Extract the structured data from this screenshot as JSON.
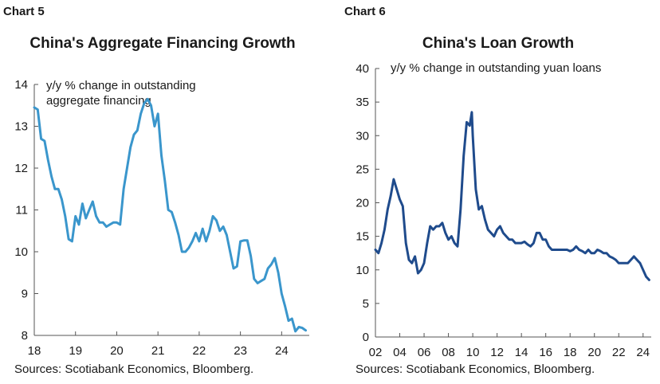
{
  "chart_data": [
    {
      "type": "line",
      "label": "Chart 5",
      "title": "China's Aggregate Financing Growth",
      "annotation": [
        "y/y % change in outstanding",
        "aggregate financing"
      ],
      "source": "Sources: Scotiabank Economics, Bloomberg.",
      "ylim": [
        8,
        14
      ],
      "yticks": [
        8,
        9,
        10,
        11,
        12,
        13,
        14
      ],
      "xlim": [
        2018,
        2024.67
      ],
      "xticks": [
        2018,
        2019,
        2020,
        2021,
        2022,
        2023,
        2024
      ],
      "xtick_labels": [
        "18",
        "19",
        "20",
        "21",
        "22",
        "23",
        "24"
      ],
      "grid": false,
      "series": [
        {
          "color": "#3a96cc",
          "x": [
            2018.0,
            2018.083,
            2018.167,
            2018.25,
            2018.333,
            2018.417,
            2018.5,
            2018.583,
            2018.667,
            2018.75,
            2018.833,
            2018.917,
            2019.0,
            2019.083,
            2019.167,
            2019.25,
            2019.333,
            2019.417,
            2019.5,
            2019.583,
            2019.667,
            2019.75,
            2019.833,
            2019.917,
            2020.0,
            2020.083,
            2020.167,
            2020.25,
            2020.333,
            2020.417,
            2020.5,
            2020.583,
            2020.667,
            2020.75,
            2020.833,
            2020.917,
            2021.0,
            2021.083,
            2021.167,
            2021.25,
            2021.333,
            2021.417,
            2021.5,
            2021.583,
            2021.667,
            2021.75,
            2021.833,
            2021.917,
            2022.0,
            2022.083,
            2022.167,
            2022.25,
            2022.333,
            2022.417,
            2022.5,
            2022.583,
            2022.667,
            2022.75,
            2022.833,
            2022.917,
            2023.0,
            2023.083,
            2023.167,
            2023.25,
            2023.333,
            2023.417,
            2023.5,
            2023.583,
            2023.667,
            2023.75,
            2023.833,
            2023.917,
            2024.0,
            2024.083,
            2024.167,
            2024.25,
            2024.333,
            2024.417,
            2024.5,
            2024.583
          ],
          "y": [
            13.45,
            13.4,
            12.7,
            12.65,
            12.2,
            11.8,
            11.5,
            11.5,
            11.25,
            10.85,
            10.3,
            10.25,
            10.85,
            10.65,
            11.15,
            10.8,
            11.0,
            11.2,
            10.85,
            10.7,
            10.7,
            10.6,
            10.65,
            10.7,
            10.7,
            10.65,
            11.5,
            12.0,
            12.5,
            12.8,
            12.9,
            13.3,
            13.55,
            13.65,
            13.5,
            13.0,
            13.3,
            12.3,
            11.7,
            11.0,
            10.95,
            10.7,
            10.4,
            10.0,
            10.0,
            10.1,
            10.25,
            10.45,
            10.25,
            10.55,
            10.25,
            10.5,
            10.85,
            10.75,
            10.5,
            10.6,
            10.4,
            10.0,
            9.6,
            9.65,
            10.25,
            10.27,
            10.27,
            9.9,
            9.35,
            9.25,
            9.3,
            9.35,
            9.6,
            9.7,
            9.85,
            9.5,
            9.0,
            8.7,
            8.35,
            8.4,
            8.1,
            8.2,
            8.18,
            8.12
          ]
        }
      ]
    },
    {
      "type": "line",
      "label": "Chart 6",
      "title": "China's  Loan Growth",
      "annotation": [
        "y/y % change in outstanding yuan loans"
      ],
      "source": "Sources: Scotiabank Economics, Bloomberg.",
      "ylim": [
        0,
        40
      ],
      "yticks": [
        0,
        5,
        10,
        15,
        20,
        25,
        30,
        35,
        40
      ],
      "xlim": [
        2002,
        2024.67
      ],
      "xticks": [
        2002,
        2004,
        2006,
        2008,
        2010,
        2012,
        2014,
        2016,
        2018,
        2020,
        2022,
        2024
      ],
      "xtick_labels": [
        "02",
        "04",
        "06",
        "08",
        "10",
        "12",
        "14",
        "16",
        "18",
        "20",
        "22",
        "24"
      ],
      "grid": false,
      "series": [
        {
          "color": "#1f4b8c",
          "x": [
            2002.0,
            2002.25,
            2002.5,
            2002.75,
            2003.0,
            2003.25,
            2003.5,
            2003.75,
            2004.0,
            2004.25,
            2004.5,
            2004.75,
            2005.0,
            2005.25,
            2005.5,
            2005.75,
            2006.0,
            2006.25,
            2006.5,
            2006.75,
            2007.0,
            2007.25,
            2007.5,
            2007.75,
            2008.0,
            2008.25,
            2008.5,
            2008.75,
            2009.0,
            2009.25,
            2009.5,
            2009.75,
            2009.92,
            2010.0,
            2010.25,
            2010.5,
            2010.75,
            2011.0,
            2011.25,
            2011.5,
            2011.75,
            2012.0,
            2012.25,
            2012.5,
            2012.75,
            2013.0,
            2013.25,
            2013.5,
            2013.75,
            2014.0,
            2014.25,
            2014.5,
            2014.75,
            2015.0,
            2015.25,
            2015.5,
            2015.75,
            2016.0,
            2016.25,
            2016.5,
            2016.75,
            2017.0,
            2017.25,
            2017.5,
            2017.75,
            2018.0,
            2018.25,
            2018.5,
            2018.75,
            2019.0,
            2019.25,
            2019.5,
            2019.75,
            2020.0,
            2020.25,
            2020.5,
            2020.75,
            2021.0,
            2021.25,
            2021.5,
            2021.75,
            2022.0,
            2022.25,
            2022.5,
            2022.75,
            2023.0,
            2023.25,
            2023.5,
            2023.75,
            2024.0,
            2024.25,
            2024.5
          ],
          "y": [
            13.0,
            12.5,
            14.0,
            16.0,
            19.0,
            21.0,
            23.5,
            22.0,
            20.5,
            19.5,
            14.0,
            11.5,
            11.0,
            12.0,
            9.5,
            10.0,
            11.0,
            14.0,
            16.5,
            16.0,
            16.5,
            16.5,
            17.0,
            15.5,
            14.5,
            15.0,
            14.0,
            13.5,
            19.0,
            27.0,
            32.0,
            31.5,
            33.5,
            30.0,
            22.0,
            19.0,
            19.5,
            17.5,
            16.0,
            15.5,
            15.0,
            16.0,
            16.5,
            15.5,
            15.0,
            14.5,
            14.5,
            14.0,
            14.0,
            14.0,
            14.2,
            13.8,
            13.5,
            14.0,
            15.5,
            15.5,
            14.5,
            14.5,
            13.5,
            13.0,
            13.0,
            13.0,
            13.0,
            13.0,
            13.0,
            12.8,
            13.0,
            13.5,
            13.0,
            12.8,
            12.5,
            13.0,
            12.5,
            12.5,
            13.0,
            12.8,
            12.5,
            12.5,
            12.0,
            11.8,
            11.5,
            11.0,
            11.0,
            11.0,
            11.0,
            11.5,
            12.0,
            11.5,
            11.0,
            10.0,
            9.0,
            8.5
          ]
        }
      ]
    }
  ]
}
